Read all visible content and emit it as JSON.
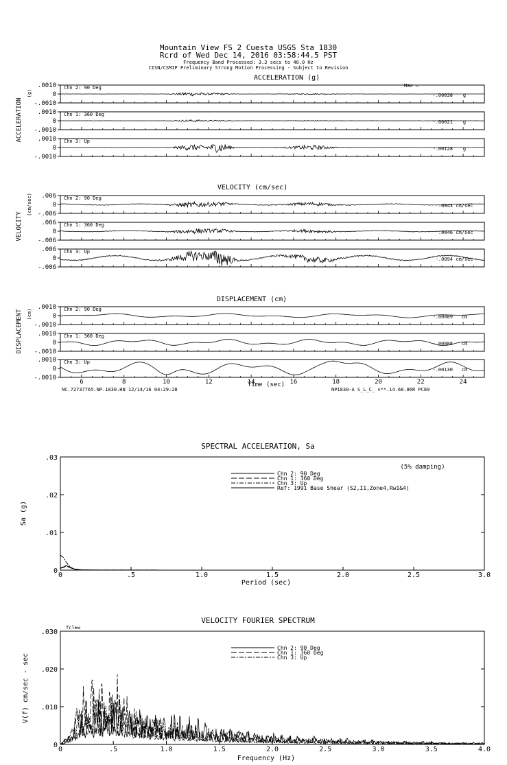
{
  "header": {
    "line1": "Mountain View FS 2 Cuesta     USGS Sta 1830",
    "line2": "Rcrd of Wed Dec 14, 2016 03:58:44.5 PST",
    "line3": "Frequency Band Processed: 3.3 secs to 40.0 Hz",
    "line4": "CISN/CSMIP Preliminary Strong Motion Processing - Subject to Revision"
  },
  "footer": {
    "left": "NC.72737765.NP.1830.HN 12/14/16 04:29:28",
    "right": "NP1830-A  S_L_C_  v**.14.68.86R PC89"
  },
  "chart_data": [
    {
      "type": "line",
      "title": "ACCELERATION (g)",
      "side_label": "ACCELERATION",
      "side_unit": "(g)",
      "max_prefix": "Max = ",
      "unit": "g",
      "ylim": [
        -0.001,
        0.001
      ],
      "yticks": [
        ".0010",
        "0",
        "-.0010"
      ],
      "series": [
        {
          "name": "Chn 2: 90 Deg",
          "max": "-.00038",
          "shape": "burst",
          "amp": 0.36
        },
        {
          "name": "Chn 1: 360 Deg",
          "max": "-.00021",
          "shape": "burst",
          "amp": 0.2
        },
        {
          "name": "Chn 3: Up",
          "max": "-.00128",
          "shape": "burst",
          "amp": 0.55
        }
      ]
    },
    {
      "type": "line",
      "title": "VELOCITY (cm/sec)",
      "side_label": "VELOCITY",
      "side_unit": "(cm/sec)",
      "unit": "cm/sec",
      "ylim": [
        -0.006,
        0.006
      ],
      "yticks": [
        ".006",
        "0",
        "-.006"
      ],
      "series": [
        {
          "name": "Chn 2: 90 Deg",
          "max": ".0043",
          "shape": "vel",
          "amp": 0.5
        },
        {
          "name": "Chn 1: 360 Deg",
          "max": ".0046",
          "shape": "vel",
          "amp": 0.45
        },
        {
          "name": "Chn 3: Up",
          "max": "-.0094",
          "shape": "vel",
          "amp": 0.9
        }
      ]
    },
    {
      "type": "line",
      "title": "DISPLACEMENT (cm)",
      "side_label": "DISPLACEMENT",
      "side_unit": "(cm)",
      "unit": "cm",
      "ylim": [
        -0.001,
        0.001
      ],
      "yticks": [
        ".0010",
        "0",
        "-.0010"
      ],
      "series": [
        {
          "name": "Chn 2: 90 Deg",
          "max": "-.00089",
          "shape": "disp",
          "amp": 0.3
        },
        {
          "name": "Chn 1: 360 Deg",
          "max": "-.00088",
          "shape": "disp",
          "amp": 0.45
        },
        {
          "name": "Chn 3: Up",
          "max": "-.00130",
          "shape": "disp",
          "amp": 0.9
        }
      ],
      "xlabel": "Time (sec)",
      "xlim": [
        5,
        25
      ],
      "xticks": [
        "6",
        "8",
        "10",
        "12",
        "14",
        "16",
        "18",
        "20",
        "22",
        "24"
      ]
    },
    {
      "type": "line",
      "title": "SPECTRAL ACCELERATION, Sa",
      "annotation": "(5% damping)",
      "xlabel": "Period (sec)",
      "ylabel": "Sa (g)",
      "xlim": [
        0,
        3.0
      ],
      "ylim": [
        0,
        0.03
      ],
      "xticks": [
        "0",
        ".5",
        "1.0",
        "1.5",
        "2.0",
        "2.5",
        "3.0"
      ],
      "yticks": [
        ".03",
        ".02",
        ".01",
        "0"
      ],
      "legend": [
        "Chn 2: 90 Deg",
        "Chn 1: 360 Deg",
        "Chn 3: Up",
        "Ref: 1991 Base Shear (S2,I1,Zone4,Rw1&4)"
      ],
      "series": [
        {
          "name": "Chn 2: 90 Deg",
          "x": [
            0.0,
            0.02,
            0.04,
            0.06,
            0.08,
            0.1,
            0.15,
            0.2,
            0.3,
            0.5,
            1.0
          ],
          "y": [
            0.0006,
            0.0008,
            0.0012,
            0.0009,
            0.0006,
            0.0003,
            0.0001,
            5e-05,
            2e-05,
            1e-05,
            0.0
          ]
        },
        {
          "name": "Chn 1: 360 Deg",
          "x": [
            0.0,
            0.02,
            0.04,
            0.06,
            0.08,
            0.1,
            0.15,
            0.2,
            0.3,
            0.5,
            1.0
          ],
          "y": [
            0.0005,
            0.0007,
            0.001,
            0.0008,
            0.0005,
            0.0002,
            0.0001,
            4e-05,
            2e-05,
            1e-05,
            0.0
          ]
        },
        {
          "name": "Chn 3: Up",
          "x": [
            0.0,
            0.02,
            0.04,
            0.06,
            0.08,
            0.1,
            0.15,
            0.2,
            0.3,
            0.5,
            1.0
          ],
          "y": [
            0.004,
            0.0034,
            0.0022,
            0.0012,
            0.0006,
            0.0003,
            0.0001,
            5e-05,
            2e-05,
            1e-05,
            0.0
          ]
        }
      ]
    },
    {
      "type": "line",
      "title": "VELOCITY FOURIER SPECTRUM",
      "corner_label": "fcl±w",
      "xlabel": "Frequency (Hz)",
      "ylabel": "V(f)   cm/sec - sec",
      "xlim": [
        0,
        4.0
      ],
      "ylim": [
        0,
        0.03
      ],
      "xticks": [
        "0",
        ".5",
        "1.0",
        "1.5",
        "2.0",
        "2.5",
        "3.0",
        "3.5",
        "4.0"
      ],
      "yticks": [
        ".030",
        ".020",
        ".010",
        "0"
      ],
      "legend": [
        "Chn 2: 90 Deg",
        "Chn 1: 360 Deg",
        "Chn 3: Up"
      ],
      "series": [
        {
          "name": "Chn 2: 90 Deg",
          "envelope_x": [
            0.0,
            0.1,
            0.2,
            0.3,
            0.4,
            0.55,
            0.7,
            0.9,
            1.1,
            1.3,
            1.5,
            1.8,
            2.1,
            2.5,
            3.0,
            3.5,
            4.0
          ],
          "envelope_y": [
            0.0,
            0.004,
            0.01,
            0.012,
            0.013,
            0.014,
            0.011,
            0.009,
            0.01,
            0.007,
            0.005,
            0.004,
            0.003,
            0.002,
            0.0012,
            0.0008,
            0.0005
          ]
        },
        {
          "name": "Chn 1: 360 Deg",
          "envelope_x": [
            0.0,
            0.1,
            0.2,
            0.3,
            0.4,
            0.55,
            0.7,
            0.9,
            1.1,
            1.3,
            1.5,
            1.8,
            2.1,
            2.5,
            3.0,
            3.5,
            4.0
          ],
          "envelope_y": [
            0.0,
            0.003,
            0.016,
            0.018,
            0.018,
            0.019,
            0.012,
            0.008,
            0.007,
            0.005,
            0.004,
            0.003,
            0.002,
            0.0015,
            0.001,
            0.0006,
            0.0004
          ]
        },
        {
          "name": "Chn 3: Up",
          "envelope_x": [
            0.0,
            0.1,
            0.2,
            0.3,
            0.4,
            0.55,
            0.7,
            0.9,
            1.1,
            1.3,
            1.5,
            1.8,
            2.1,
            2.5,
            3.0,
            3.5,
            4.0
          ],
          "envelope_y": [
            0.0,
            0.005,
            0.012,
            0.015,
            0.014,
            0.013,
            0.01,
            0.008,
            0.006,
            0.005,
            0.004,
            0.003,
            0.002,
            0.0015,
            0.001,
            0.0006,
            0.0004
          ]
        }
      ]
    }
  ]
}
